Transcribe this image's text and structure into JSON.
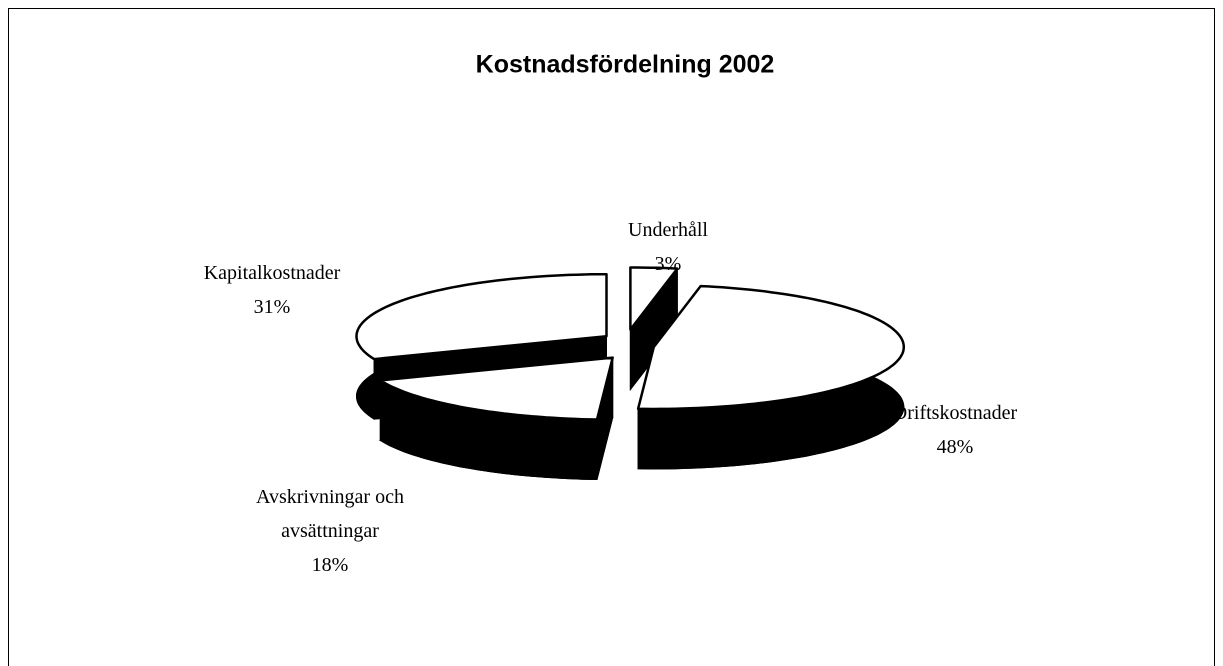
{
  "chart_data": {
    "type": "pie3d",
    "title": "Kostnadsfördelning 2002",
    "categories": [
      "Underhåll",
      "Driftskostnader",
      "Avskrivningar och avsättningar",
      "Kapitalkostnader"
    ],
    "values": [
      3,
      48,
      18,
      31
    ],
    "value_labels": [
      "3%",
      "48%",
      "18%",
      "31%"
    ],
    "face_color": "#ffffff",
    "side_color": "#000000"
  }
}
